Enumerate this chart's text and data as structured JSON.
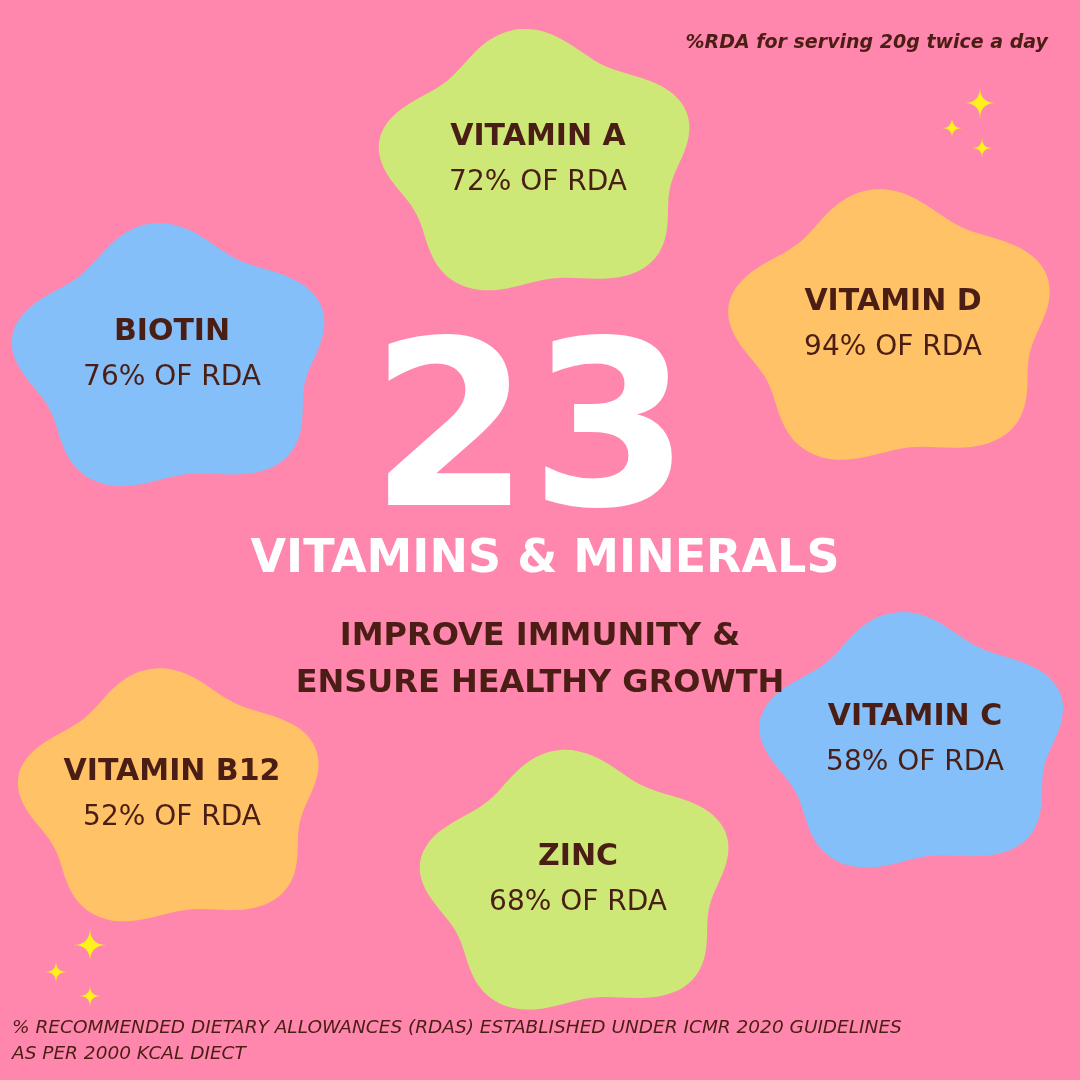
{
  "chart_data": {
    "type": "other",
    "title": "23",
    "subtitle": "VITAMINS & MINERALS",
    "categories": [
      "VITAMIN A",
      "BIOTIN",
      "VITAMIN D",
      "VITAMIN C",
      "VITAMIN B12",
      "ZINC"
    ],
    "values": [
      72,
      76,
      94,
      58,
      52,
      68
    ],
    "value_labels": [
      "72% OF RDA",
      "76% OF RDA",
      "94% OF RDA",
      "58% OF RDA",
      "52% OF RDA",
      "68% OF RDA"
    ],
    "colors": [
      "#cde877",
      "#85bff9",
      "#ffc266",
      "#85bff9",
      "#ffc266",
      "#cde877"
    ],
    "annotations": [
      "IMPROVE IMMUNITY &\nENSURE HEALTHY GROWTH",
      "%RDA for serving 20g twice a day",
      "% RECOMMENDED DIETARY ALLOWANCES (RDAS) ESTABLISHED UNDER ICMR 2020 GUIDELINES\nAS PER 2000 KCAL DIECT"
    ]
  }
}
